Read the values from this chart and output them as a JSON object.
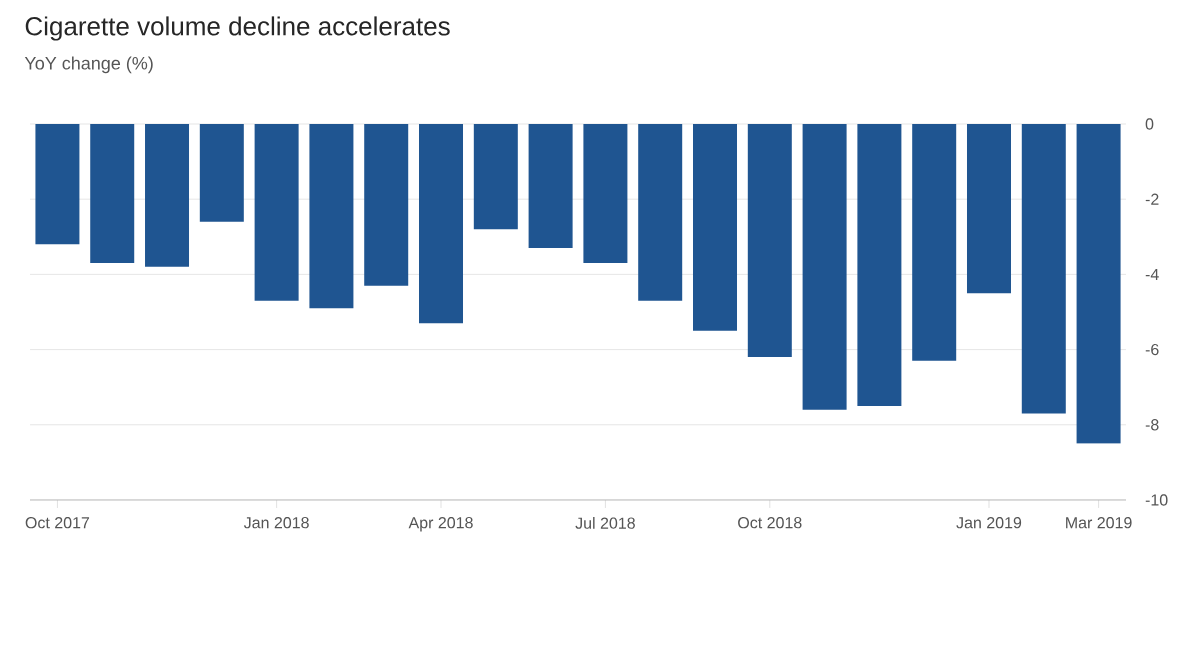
{
  "chart_data": {
    "type": "bar",
    "title": "Cigarette volume decline accelerates",
    "subtitle": "YoY change (%)",
    "categories": [
      "Oct 2017",
      null,
      null,
      null,
      "Jan 2018",
      null,
      null,
      "Apr 2018",
      null,
      null,
      "Jul 2018",
      null,
      null,
      "Oct 2018",
      null,
      null,
      null,
      "Jan 2019",
      null,
      "Mar 2019"
    ],
    "values": [
      -3.2,
      -3.7,
      -3.8,
      -2.6,
      -4.7,
      -4.9,
      -4.3,
      -5.3,
      -2.8,
      -3.3,
      -3.7,
      -4.7,
      -5.5,
      -6.2,
      -7.6,
      -7.5,
      -6.3,
      -4.5,
      -7.7,
      -8.5
    ],
    "color": "#1f5591",
    "ylim": [
      -10,
      0
    ],
    "yticks": [
      -10,
      -8,
      -6,
      -4,
      -2,
      0
    ],
    "grid": "y"
  }
}
